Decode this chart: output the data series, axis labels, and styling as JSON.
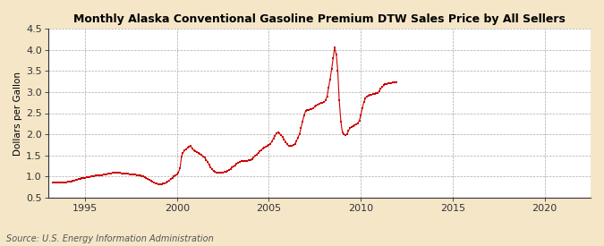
{
  "title": "Monthly Alaska Conventional Gasoline Premium DTW Sales Price by All Sellers",
  "ylabel": "Dollars per Gallon",
  "source": "Source: U.S. Energy Information Administration",
  "fig_background_color": "#f5e6c8",
  "plot_background_color": "#ffffff",
  "marker_color": "#cc0000",
  "line_color": "#cc0000",
  "ylim": [
    0.5,
    4.5
  ],
  "xlim_start": 1993.0,
  "xlim_end": 2022.5,
  "xticks": [
    1995,
    2000,
    2005,
    2010,
    2015,
    2020
  ],
  "yticks": [
    0.5,
    1.0,
    1.5,
    2.0,
    2.5,
    3.0,
    3.5,
    4.0,
    4.5
  ],
  "data": [
    [
      1993.25,
      0.86
    ],
    [
      1993.33,
      0.87
    ],
    [
      1993.42,
      0.87
    ],
    [
      1993.5,
      0.87
    ],
    [
      1993.58,
      0.87
    ],
    [
      1993.67,
      0.87
    ],
    [
      1993.75,
      0.87
    ],
    [
      1993.83,
      0.87
    ],
    [
      1993.92,
      0.87
    ],
    [
      1994.0,
      0.87
    ],
    [
      1994.08,
      0.88
    ],
    [
      1994.17,
      0.88
    ],
    [
      1994.25,
      0.89
    ],
    [
      1994.33,
      0.9
    ],
    [
      1994.42,
      0.91
    ],
    [
      1994.5,
      0.92
    ],
    [
      1994.58,
      0.93
    ],
    [
      1994.67,
      0.94
    ],
    [
      1994.75,
      0.95
    ],
    [
      1994.83,
      0.96
    ],
    [
      1994.92,
      0.97
    ],
    [
      1995.0,
      0.97
    ],
    [
      1995.08,
      0.98
    ],
    [
      1995.17,
      0.98
    ],
    [
      1995.25,
      0.99
    ],
    [
      1995.33,
      1.0
    ],
    [
      1995.42,
      1.0
    ],
    [
      1995.5,
      1.01
    ],
    [
      1995.58,
      1.02
    ],
    [
      1995.67,
      1.02
    ],
    [
      1995.75,
      1.03
    ],
    [
      1995.83,
      1.04
    ],
    [
      1995.92,
      1.04
    ],
    [
      1996.0,
      1.05
    ],
    [
      1996.08,
      1.06
    ],
    [
      1996.17,
      1.06
    ],
    [
      1996.25,
      1.07
    ],
    [
      1996.33,
      1.08
    ],
    [
      1996.42,
      1.08
    ],
    [
      1996.5,
      1.09
    ],
    [
      1996.58,
      1.09
    ],
    [
      1996.67,
      1.09
    ],
    [
      1996.75,
      1.09
    ],
    [
      1996.83,
      1.09
    ],
    [
      1996.92,
      1.09
    ],
    [
      1997.0,
      1.08
    ],
    [
      1997.08,
      1.08
    ],
    [
      1997.17,
      1.07
    ],
    [
      1997.25,
      1.07
    ],
    [
      1997.33,
      1.07
    ],
    [
      1997.42,
      1.06
    ],
    [
      1997.5,
      1.06
    ],
    [
      1997.58,
      1.06
    ],
    [
      1997.67,
      1.05
    ],
    [
      1997.75,
      1.05
    ],
    [
      1997.83,
      1.04
    ],
    [
      1997.92,
      1.03
    ],
    [
      1998.0,
      1.02
    ],
    [
      1998.08,
      1.01
    ],
    [
      1998.17,
      1.0
    ],
    [
      1998.25,
      0.98
    ],
    [
      1998.33,
      0.96
    ],
    [
      1998.42,
      0.94
    ],
    [
      1998.5,
      0.92
    ],
    [
      1998.58,
      0.9
    ],
    [
      1998.67,
      0.88
    ],
    [
      1998.75,
      0.86
    ],
    [
      1998.83,
      0.84
    ],
    [
      1998.92,
      0.83
    ],
    [
      1999.0,
      0.82
    ],
    [
      1999.08,
      0.82
    ],
    [
      1999.17,
      0.82
    ],
    [
      1999.25,
      0.83
    ],
    [
      1999.33,
      0.84
    ],
    [
      1999.42,
      0.86
    ],
    [
      1999.5,
      0.88
    ],
    [
      1999.58,
      0.91
    ],
    [
      1999.67,
      0.94
    ],
    [
      1999.75,
      0.97
    ],
    [
      1999.83,
      1.0
    ],
    [
      1999.92,
      1.02
    ],
    [
      2000.0,
      1.05
    ],
    [
      2000.08,
      1.1
    ],
    [
      2000.17,
      1.2
    ],
    [
      2000.25,
      1.48
    ],
    [
      2000.33,
      1.56
    ],
    [
      2000.42,
      1.62
    ],
    [
      2000.5,
      1.65
    ],
    [
      2000.58,
      1.68
    ],
    [
      2000.67,
      1.7
    ],
    [
      2000.75,
      1.72
    ],
    [
      2000.83,
      1.67
    ],
    [
      2000.92,
      1.62
    ],
    [
      2001.0,
      1.6
    ],
    [
      2001.08,
      1.58
    ],
    [
      2001.17,
      1.56
    ],
    [
      2001.25,
      1.54
    ],
    [
      2001.33,
      1.51
    ],
    [
      2001.42,
      1.48
    ],
    [
      2001.5,
      1.45
    ],
    [
      2001.58,
      1.4
    ],
    [
      2001.67,
      1.35
    ],
    [
      2001.75,
      1.28
    ],
    [
      2001.83,
      1.22
    ],
    [
      2001.92,
      1.17
    ],
    [
      2002.0,
      1.13
    ],
    [
      2002.08,
      1.11
    ],
    [
      2002.17,
      1.1
    ],
    [
      2002.25,
      1.1
    ],
    [
      2002.33,
      1.1
    ],
    [
      2002.42,
      1.1
    ],
    [
      2002.5,
      1.1
    ],
    [
      2002.58,
      1.11
    ],
    [
      2002.67,
      1.12
    ],
    [
      2002.75,
      1.14
    ],
    [
      2002.83,
      1.16
    ],
    [
      2002.92,
      1.18
    ],
    [
      2003.0,
      1.21
    ],
    [
      2003.08,
      1.24
    ],
    [
      2003.17,
      1.27
    ],
    [
      2003.25,
      1.3
    ],
    [
      2003.33,
      1.33
    ],
    [
      2003.42,
      1.35
    ],
    [
      2003.5,
      1.36
    ],
    [
      2003.58,
      1.37
    ],
    [
      2003.67,
      1.37
    ],
    [
      2003.75,
      1.37
    ],
    [
      2003.83,
      1.37
    ],
    [
      2003.92,
      1.38
    ],
    [
      2004.0,
      1.4
    ],
    [
      2004.08,
      1.42
    ],
    [
      2004.17,
      1.45
    ],
    [
      2004.25,
      1.49
    ],
    [
      2004.33,
      1.52
    ],
    [
      2004.42,
      1.56
    ],
    [
      2004.5,
      1.6
    ],
    [
      2004.58,
      1.63
    ],
    [
      2004.67,
      1.66
    ],
    [
      2004.75,
      1.68
    ],
    [
      2004.83,
      1.7
    ],
    [
      2004.92,
      1.72
    ],
    [
      2005.0,
      1.74
    ],
    [
      2005.08,
      1.78
    ],
    [
      2005.17,
      1.83
    ],
    [
      2005.25,
      1.9
    ],
    [
      2005.33,
      1.97
    ],
    [
      2005.42,
      2.02
    ],
    [
      2005.5,
      2.05
    ],
    [
      2005.58,
      2.02
    ],
    [
      2005.67,
      1.98
    ],
    [
      2005.75,
      1.94
    ],
    [
      2005.83,
      1.88
    ],
    [
      2005.92,
      1.82
    ],
    [
      2006.0,
      1.76
    ],
    [
      2006.08,
      1.73
    ],
    [
      2006.17,
      1.72
    ],
    [
      2006.25,
      1.72
    ],
    [
      2006.33,
      1.74
    ],
    [
      2006.42,
      1.78
    ],
    [
      2006.5,
      1.84
    ],
    [
      2006.58,
      1.92
    ],
    [
      2006.67,
      2.01
    ],
    [
      2006.75,
      2.15
    ],
    [
      2006.83,
      2.3
    ],
    [
      2006.92,
      2.45
    ],
    [
      2007.0,
      2.55
    ],
    [
      2007.08,
      2.58
    ],
    [
      2007.17,
      2.58
    ],
    [
      2007.25,
      2.59
    ],
    [
      2007.33,
      2.6
    ],
    [
      2007.42,
      2.62
    ],
    [
      2007.5,
      2.65
    ],
    [
      2007.58,
      2.68
    ],
    [
      2007.67,
      2.7
    ],
    [
      2007.75,
      2.72
    ],
    [
      2007.83,
      2.74
    ],
    [
      2007.92,
      2.75
    ],
    [
      2008.0,
      2.76
    ],
    [
      2008.08,
      2.8
    ],
    [
      2008.17,
      2.9
    ],
    [
      2008.25,
      3.1
    ],
    [
      2008.33,
      3.3
    ],
    [
      2008.42,
      3.55
    ],
    [
      2008.5,
      3.8
    ],
    [
      2008.58,
      4.05
    ],
    [
      2008.67,
      3.88
    ],
    [
      2008.75,
      3.5
    ],
    [
      2008.83,
      2.8
    ],
    [
      2008.92,
      2.3
    ],
    [
      2009.0,
      2.05
    ],
    [
      2009.08,
      2.0
    ],
    [
      2009.17,
      1.98
    ],
    [
      2009.25,
      2.0
    ],
    [
      2009.33,
      2.08
    ],
    [
      2009.42,
      2.15
    ],
    [
      2009.5,
      2.18
    ],
    [
      2009.58,
      2.2
    ],
    [
      2009.67,
      2.22
    ],
    [
      2009.75,
      2.24
    ],
    [
      2009.83,
      2.26
    ],
    [
      2009.92,
      2.32
    ],
    [
      2010.0,
      2.45
    ],
    [
      2010.08,
      2.62
    ],
    [
      2010.17,
      2.76
    ],
    [
      2010.25,
      2.85
    ],
    [
      2010.33,
      2.9
    ],
    [
      2010.42,
      2.92
    ],
    [
      2010.5,
      2.93
    ],
    [
      2010.58,
      2.94
    ],
    [
      2010.67,
      2.95
    ],
    [
      2010.75,
      2.96
    ],
    [
      2010.83,
      2.97
    ],
    [
      2010.92,
      2.98
    ],
    [
      2011.0,
      3.02
    ],
    [
      2011.08,
      3.08
    ],
    [
      2011.17,
      3.12
    ],
    [
      2011.25,
      3.16
    ],
    [
      2011.33,
      3.18
    ],
    [
      2011.42,
      3.19
    ],
    [
      2011.5,
      3.2
    ],
    [
      2011.58,
      3.21
    ],
    [
      2011.67,
      3.21
    ],
    [
      2011.75,
      3.22
    ],
    [
      2011.83,
      3.22
    ],
    [
      2011.92,
      3.22
    ]
  ]
}
